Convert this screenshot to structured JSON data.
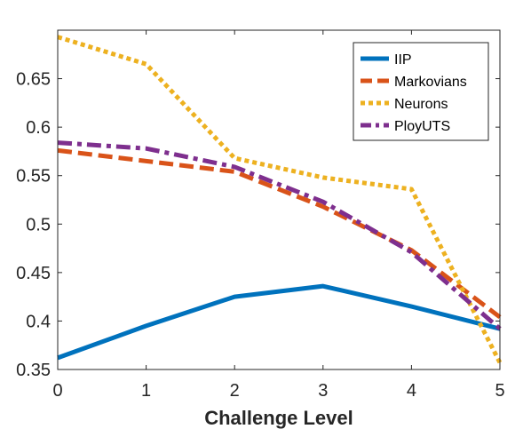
{
  "chart_data": {
    "type": "line",
    "title": "",
    "xlabel": "Challenge Level",
    "ylabel": "",
    "x": [
      0,
      1,
      2,
      3,
      4,
      5
    ],
    "xlim": [
      0,
      5
    ],
    "ylim": [
      0.35,
      0.7
    ],
    "xticks": [
      "0",
      "1",
      "2",
      "3",
      "4",
      "5"
    ],
    "yticks": [
      "0.35",
      "0.4",
      "0.45",
      "0.5",
      "0.55",
      "0.6",
      "0.65"
    ],
    "ytick_values": [
      0.35,
      0.4,
      0.45,
      0.5,
      0.55,
      0.6,
      0.65
    ],
    "grid": false,
    "legend_position": "top-right",
    "series": [
      {
        "name": "IIP",
        "values": [
          0.362,
          0.395,
          0.425,
          0.436,
          0.415,
          0.392
        ],
        "color": "#0072BD",
        "style": "solid"
      },
      {
        "name": "Markovians",
        "values": [
          0.576,
          0.565,
          0.554,
          0.518,
          0.473,
          0.404
        ],
        "color": "#D95319",
        "style": "dashed"
      },
      {
        "name": "Neurons",
        "values": [
          0.693,
          0.665,
          0.568,
          0.548,
          0.536,
          0.357
        ],
        "color": "#EDB120",
        "style": "dotted"
      },
      {
        "name": "PloyUTS",
        "values": [
          0.584,
          0.578,
          0.559,
          0.523,
          0.471,
          0.392
        ],
        "color": "#7E2F8E",
        "style": "dashdot"
      }
    ]
  }
}
